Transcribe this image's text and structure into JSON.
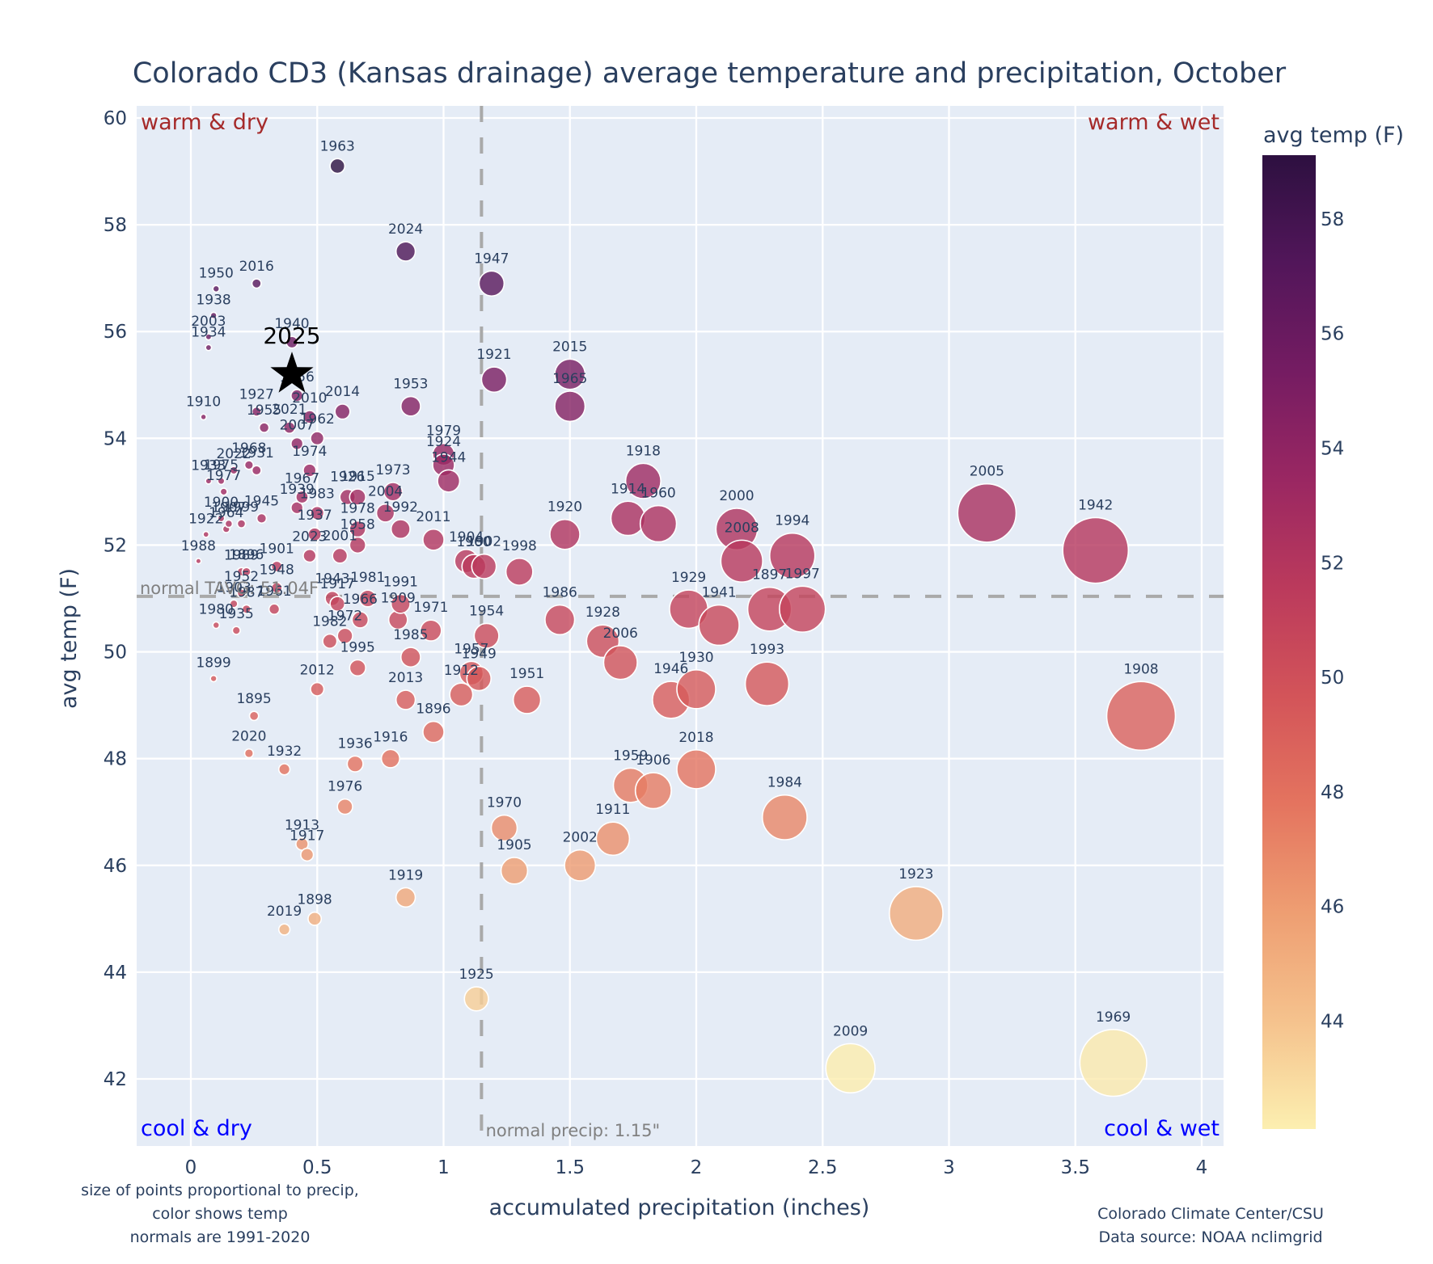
{
  "chart_data": {
    "type": "scatter",
    "title": "Colorado CD3 (Kansas drainage) average temperature and precipitation, October",
    "xlabel": "accumulated precipitation (inches)",
    "ylabel": "avg temp (F)",
    "xlim": [
      -0.22,
      4.08
    ],
    "ylim": [
      40.8,
      60.25
    ],
    "xticks": [
      0,
      0.5,
      1,
      1.5,
      2,
      2.5,
      3,
      3.5,
      4
    ],
    "xtick_labels": [
      "0",
      "0.5",
      "1",
      "1.5",
      "2",
      "2.5",
      "3",
      "3.5",
      "4"
    ],
    "yticks": [
      42,
      44,
      46,
      48,
      50,
      52,
      54,
      56,
      58,
      60
    ],
    "ytick_labels": [
      "42",
      "44",
      "46",
      "48",
      "50",
      "52",
      "54",
      "56",
      "58",
      "60"
    ],
    "grid": true,
    "colorbar": {
      "title": "avg temp (F)",
      "range": [
        42.1,
        59.1
      ],
      "ticks": [
        44,
        46,
        48,
        50,
        52,
        54,
        56,
        58
      ],
      "tick_labels": [
        "44",
        "46",
        "48",
        "50",
        "52",
        "54",
        "56",
        "58"
      ],
      "colorscale": [
        "#fcefb0",
        "#f5c28d",
        "#ee9e72",
        "#e4745f",
        "#d35459",
        "#bb3a5c",
        "#9a2762",
        "#751c62",
        "#52165a",
        "#2d1040"
      ]
    },
    "normal_temp": 51.04,
    "normal_precip": 1.15,
    "normal_temp_label": "normal TAVG: 51.04F",
    "normal_precip_label": "normal precip: 1.15\"",
    "quadrant_labels": {
      "top_left": "warm & dry",
      "top_right": "warm & wet",
      "bottom_left": "cool & dry",
      "bottom_right": "cool & wet"
    },
    "highlight": {
      "label": "2025",
      "x": 0.4,
      "y": 55.2,
      "marker": "star"
    },
    "notes": {
      "left": [
        "size of points proportional to precip,",
        "color shows temp",
        "normals are 1991-2020"
      ],
      "right": [
        "Colorado Climate Center/CSU",
        "Data source: NOAA nclimgrid"
      ]
    },
    "points": [
      {
        "year": "1963",
        "x": 0.58,
        "y": 59.1
      },
      {
        "year": "2024",
        "x": 0.85,
        "y": 57.5
      },
      {
        "year": "1947",
        "x": 1.19,
        "y": 56.9
      },
      {
        "year": "1950",
        "x": 0.1,
        "y": 56.8
      },
      {
        "year": "2016",
        "x": 0.26,
        "y": 56.9
      },
      {
        "year": "1938",
        "x": 0.09,
        "y": 56.3
      },
      {
        "year": "2003",
        "x": 0.07,
        "y": 55.9
      },
      {
        "year": "1934",
        "x": 0.07,
        "y": 55.7
      },
      {
        "year": "1940",
        "x": 0.4,
        "y": 55.8
      },
      {
        "year": "1921",
        "x": 1.2,
        "y": 55.1
      },
      {
        "year": "2015",
        "x": 1.5,
        "y": 55.2
      },
      {
        "year": "1965",
        "x": 1.5,
        "y": 54.6
      },
      {
        "year": "1956",
        "x": 0.42,
        "y": 54.8
      },
      {
        "year": "1953",
        "x": 0.87,
        "y": 54.6
      },
      {
        "year": "2014",
        "x": 0.6,
        "y": 54.5
      },
      {
        "year": "1927",
        "x": 0.26,
        "y": 54.5
      },
      {
        "year": "2010",
        "x": 0.47,
        "y": 54.4
      },
      {
        "year": "1910",
        "x": 0.05,
        "y": 54.4
      },
      {
        "year": "1955",
        "x": 0.29,
        "y": 54.2
      },
      {
        "year": "2021",
        "x": 0.39,
        "y": 54.2
      },
      {
        "year": "1962",
        "x": 0.5,
        "y": 54.0
      },
      {
        "year": "2007",
        "x": 0.42,
        "y": 53.9
      },
      {
        "year": "1974",
        "x": 0.47,
        "y": 53.4
      },
      {
        "year": "1979",
        "x": 1.0,
        "y": 53.7
      },
      {
        "year": "1924",
        "x": 1.0,
        "y": 53.5
      },
      {
        "year": "1944",
        "x": 1.02,
        "y": 53.2
      },
      {
        "year": "1968",
        "x": 0.23,
        "y": 53.5
      },
      {
        "year": "1933",
        "x": 0.07,
        "y": 53.2
      },
      {
        "year": "2022",
        "x": 0.17,
        "y": 53.4
      },
      {
        "year": "1931",
        "x": 0.26,
        "y": 53.4
      },
      {
        "year": "1975",
        "x": 0.12,
        "y": 53.2
      },
      {
        "year": "1977",
        "x": 0.13,
        "y": 53.0
      },
      {
        "year": "1967",
        "x": 0.44,
        "y": 52.9
      },
      {
        "year": "1926",
        "x": 0.62,
        "y": 52.9
      },
      {
        "year": "1915",
        "x": 0.66,
        "y": 52.9
      },
      {
        "year": "1973",
        "x": 0.8,
        "y": 53.0
      },
      {
        "year": "1939",
        "x": 0.42,
        "y": 52.7
      },
      {
        "year": "1983",
        "x": 0.5,
        "y": 52.6
      },
      {
        "year": "2004",
        "x": 0.77,
        "y": 52.6
      },
      {
        "year": "1918",
        "x": 1.79,
        "y": 53.2
      },
      {
        "year": "1914",
        "x": 1.73,
        "y": 52.5
      },
      {
        "year": "1960",
        "x": 1.85,
        "y": 52.4
      },
      {
        "year": "2000",
        "x": 2.16,
        "y": 52.3
      },
      {
        "year": "2005",
        "x": 3.15,
        "y": 52.6
      },
      {
        "year": "1942",
        "x": 3.58,
        "y": 51.9
      },
      {
        "year": "1920",
        "x": 1.48,
        "y": 52.2
      },
      {
        "year": "1994",
        "x": 2.38,
        "y": 51.8
      },
      {
        "year": "2008",
        "x": 2.18,
        "y": 51.7
      },
      {
        "year": "1945",
        "x": 0.28,
        "y": 52.5
      },
      {
        "year": "1900",
        "x": 0.12,
        "y": 52.5
      },
      {
        "year": "1907",
        "x": 0.15,
        "y": 52.4
      },
      {
        "year": "1964",
        "x": 0.14,
        "y": 52.3
      },
      {
        "year": "1922",
        "x": 0.06,
        "y": 52.2
      },
      {
        "year": "1999",
        "x": 0.2,
        "y": 52.4
      },
      {
        "year": "1937",
        "x": 0.49,
        "y": 52.2
      },
      {
        "year": "1978",
        "x": 0.66,
        "y": 52.3
      },
      {
        "year": "1992",
        "x": 0.83,
        "y": 52.3
      },
      {
        "year": "2011",
        "x": 0.96,
        "y": 52.1
      },
      {
        "year": "1958",
        "x": 0.66,
        "y": 52.0
      },
      {
        "year": "2023",
        "x": 0.47,
        "y": 51.8
      },
      {
        "year": "2001",
        "x": 0.59,
        "y": 51.8
      },
      {
        "year": "1901",
        "x": 0.34,
        "y": 51.6
      },
      {
        "year": "1988",
        "x": 0.03,
        "y": 51.7
      },
      {
        "year": "1989",
        "x": 0.2,
        "y": 51.5
      },
      {
        "year": "1896x",
        "x": 0.22,
        "y": 51.5
      },
      {
        "year": "1904",
        "x": 1.09,
        "y": 51.7
      },
      {
        "year": "1960b",
        "x": 1.12,
        "y": 51.6
      },
      {
        "year": "1902",
        "x": 1.16,
        "y": 51.6
      },
      {
        "year": "1998",
        "x": 1.3,
        "y": 51.5
      },
      {
        "year": "1948",
        "x": 0.34,
        "y": 51.2
      },
      {
        "year": "1943",
        "x": 0.56,
        "y": 51.0
      },
      {
        "year": "1917b",
        "x": 0.58,
        "y": 50.9
      },
      {
        "year": "1981",
        "x": 0.7,
        "y": 51.0
      },
      {
        "year": "1991",
        "x": 0.83,
        "y": 50.9
      },
      {
        "year": "1952",
        "x": 0.2,
        "y": 51.1
      },
      {
        "year": "1903",
        "x": 0.17,
        "y": 50.9
      },
      {
        "year": "1987",
        "x": 0.22,
        "y": 50.8
      },
      {
        "year": "1961",
        "x": 0.33,
        "y": 50.8
      },
      {
        "year": "1966",
        "x": 0.67,
        "y": 50.6
      },
      {
        "year": "1909",
        "x": 0.82,
        "y": 50.6
      },
      {
        "year": "1971",
        "x": 0.95,
        "y": 50.4
      },
      {
        "year": "1972",
        "x": 0.61,
        "y": 50.3
      },
      {
        "year": "1982",
        "x": 0.55,
        "y": 50.2
      },
      {
        "year": "1954",
        "x": 1.17,
        "y": 50.3
      },
      {
        "year": "1986",
        "x": 1.46,
        "y": 50.6
      },
      {
        "year": "1928",
        "x": 1.63,
        "y": 50.2
      },
      {
        "year": "1929",
        "x": 1.97,
        "y": 50.8
      },
      {
        "year": "1941",
        "x": 2.09,
        "y": 50.5
      },
      {
        "year": "1897",
        "x": 2.29,
        "y": 50.8
      },
      {
        "year": "1997",
        "x": 2.42,
        "y": 50.8
      },
      {
        "year": "1980",
        "x": 0.1,
        "y": 50.5
      },
      {
        "year": "1935",
        "x": 0.18,
        "y": 50.4
      },
      {
        "year": "1995",
        "x": 0.66,
        "y": 49.7
      },
      {
        "year": "1985",
        "x": 0.87,
        "y": 49.9
      },
      {
        "year": "2006",
        "x": 1.7,
        "y": 49.8
      },
      {
        "year": "1957",
        "x": 1.11,
        "y": 49.6
      },
      {
        "year": "1949",
        "x": 1.14,
        "y": 49.5
      },
      {
        "year": "1912",
        "x": 1.07,
        "y": 49.2
      },
      {
        "year": "1899",
        "x": 0.09,
        "y": 49.5
      },
      {
        "year": "2012",
        "x": 0.5,
        "y": 49.3
      },
      {
        "year": "2013",
        "x": 0.85,
        "y": 49.1
      },
      {
        "year": "1951",
        "x": 1.33,
        "y": 49.1
      },
      {
        "year": "1946",
        "x": 1.9,
        "y": 49.1
      },
      {
        "year": "1930",
        "x": 2.0,
        "y": 49.3
      },
      {
        "year": "1993",
        "x": 2.28,
        "y": 49.4
      },
      {
        "year": "1908",
        "x": 3.76,
        "y": 48.8
      },
      {
        "year": "1895",
        "x": 0.25,
        "y": 48.8
      },
      {
        "year": "1896",
        "x": 0.96,
        "y": 48.5
      },
      {
        "year": "1916",
        "x": 0.79,
        "y": 48.0
      },
      {
        "year": "1936",
        "x": 0.65,
        "y": 47.9
      },
      {
        "year": "2020",
        "x": 0.23,
        "y": 48.1
      },
      {
        "year": "1932",
        "x": 0.37,
        "y": 47.8
      },
      {
        "year": "2018",
        "x": 2.0,
        "y": 47.8
      },
      {
        "year": "1959",
        "x": 1.74,
        "y": 47.5
      },
      {
        "year": "1906",
        "x": 1.83,
        "y": 47.4
      },
      {
        "year": "1976",
        "x": 0.61,
        "y": 47.1
      },
      {
        "year": "1984",
        "x": 2.35,
        "y": 46.9
      },
      {
        "year": "1970",
        "x": 1.24,
        "y": 46.7
      },
      {
        "year": "1911",
        "x": 1.67,
        "y": 46.5
      },
      {
        "year": "1913",
        "x": 0.44,
        "y": 46.4
      },
      {
        "year": "1917",
        "x": 0.46,
        "y": 46.2
      },
      {
        "year": "2002",
        "x": 1.54,
        "y": 46.0
      },
      {
        "year": "1905",
        "x": 1.28,
        "y": 45.9
      },
      {
        "year": "1919",
        "x": 0.85,
        "y": 45.4
      },
      {
        "year": "1923",
        "x": 2.87,
        "y": 45.1
      },
      {
        "year": "1898",
        "x": 0.49,
        "y": 45.0
      },
      {
        "year": "2019",
        "x": 0.37,
        "y": 44.8
      },
      {
        "year": "1925",
        "x": 1.13,
        "y": 43.5
      },
      {
        "year": "1969",
        "x": 3.65,
        "y": 42.3
      },
      {
        "year": "2009",
        "x": 2.61,
        "y": 42.2
      }
    ]
  }
}
